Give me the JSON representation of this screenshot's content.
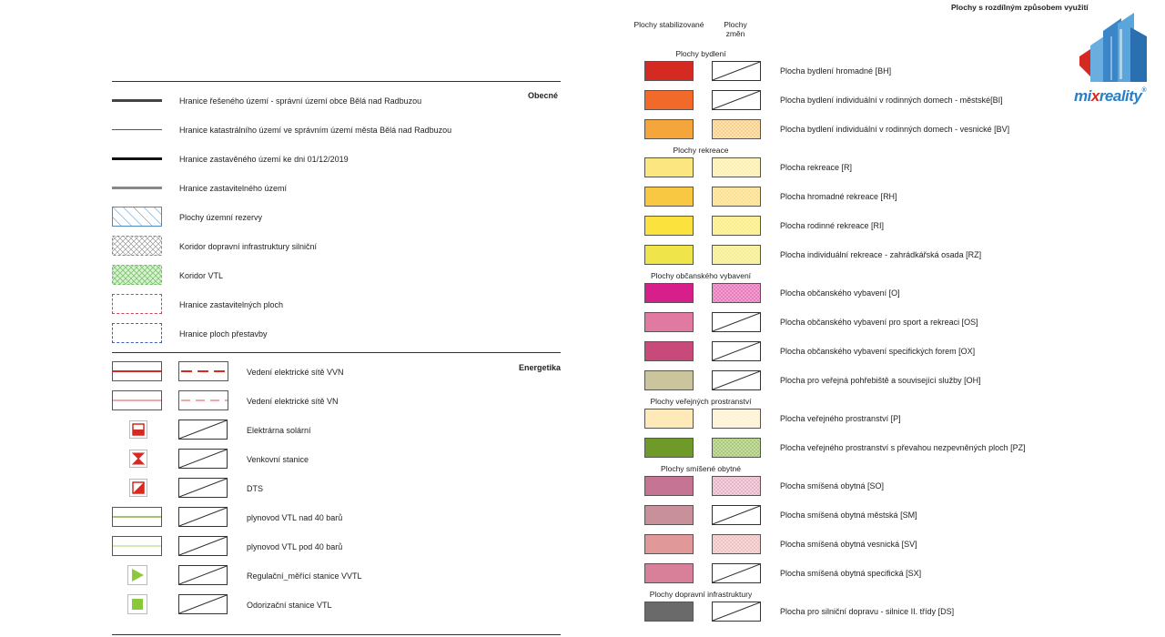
{
  "left": {
    "sections": [
      {
        "title": "Obecné"
      },
      {
        "title": "Energetika"
      }
    ],
    "obecne_items": [
      "Hranice řešeného území - správní území obce Bělá nad Radbuzou",
      "Hranice katastrálního území ve správním území města Bělá nad Radbuzou",
      "Hranice zastavěného území ke dni 01/12/2019",
      "Hranice zastavitelného území",
      "Plochy územní rezervy",
      "Koridor dopravní infrastruktury silniční",
      "Koridor VTL",
      "Hranice zastavitelných ploch",
      "Hranice ploch přestavby"
    ],
    "energetika_items": [
      "Vedení elektrické sítě VVN",
      "Vedení elektrické sítě VN",
      "Elektrárna solární",
      "Venkovní stanice",
      "DTS",
      "plynovod VTL nad 40 barů",
      "plynovod VTL pod 40 barů",
      "Regulační_měřící stanice VVTL",
      "Odorizační stanice VTL"
    ]
  },
  "right": {
    "title": "Plochy s rozdílným způsobem využití",
    "col1": "Plochy stabilizované",
    "col2": "Plochy změn",
    "categories": [
      {
        "title": "Plochy bydlení",
        "items": [
          {
            "label": "Plocha bydlení hromadné [BH]",
            "color": "#d42a22",
            "change": "cross"
          },
          {
            "label": "Plocha bydlení individuální v rodinných domech - městské[BI]",
            "color": "#f26a2a",
            "change": "cross"
          },
          {
            "label": "Plocha bydlení individuální v rodinných domech - vesnické [BV]",
            "color": "#f4a63a",
            "change": "#fbe2b0"
          }
        ]
      },
      {
        "title": "Plochy rekreace",
        "items": [
          {
            "label": "Plocha rekreace [R]",
            "color": "#fbe680",
            "change": "#fdf5c8"
          },
          {
            "label": "Plocha hromadné rekreace [RH]",
            "color": "#f9c842",
            "change": "#fdeab0"
          },
          {
            "label": "Plocha rodinné rekreace [RI]",
            "color": "#fbe23c",
            "change": "#fdf3a8"
          },
          {
            "label": "Plocha individuální rekreace - zahrádkářská osada [RZ]",
            "color": "#efe44a",
            "change": "#f9f3b0"
          }
        ]
      },
      {
        "title": "Plochy občanského vybavení",
        "items": [
          {
            "label": "Plocha občanského vybavení [O]",
            "color": "#d61f8a",
            "change": "#f0a0d0"
          },
          {
            "label": "Plocha občanského vybavení pro sport a rekreaci [OS]",
            "color": "#e07aa0",
            "change": "cross"
          },
          {
            "label": "Plocha občanského vybavení specifických forem [OX]",
            "color": "#c84a7a",
            "change": "cross"
          },
          {
            "label": "Plocha pro veřejná pohřebiště a související služby [OH]",
            "color": "#cbc59e",
            "change": "cross"
          }
        ]
      },
      {
        "title": "Plochy veřejných prostranství",
        "items": [
          {
            "label": "Plocha veřejného prostranství [P]",
            "color": "#fdeab8",
            "change": "#fef6e0"
          },
          {
            "label": "Plocha veřejného  prostranství s převahou nezpevněných ploch [PZ]",
            "color": "#6f9a2a",
            "change": "#c4dca0"
          }
        ]
      },
      {
        "title": "Plochy smíšené obytné",
        "items": [
          {
            "label": "Plocha smíšená obytná [SO]",
            "color": "#c67494",
            "change": "#f2d0dc"
          },
          {
            "label": "Plocha smíšená obytná městská [SM]",
            "color": "#c8909a",
            "change": "cross"
          },
          {
            "label": "Plocha smíšená obytná vesnická [SV]",
            "color": "#e09898",
            "change": "#f6d8d8"
          },
          {
            "label": "Plocha smíšená obytná specifická [SX]",
            "color": "#d8809a",
            "change": "cross"
          }
        ]
      },
      {
        "title": "Plochy dopravní infrastruktury",
        "items": [
          {
            "label": "Plocha pro silniční dopravu - silnice II. třídy [DS]",
            "color": "#6a6a6a",
            "change": "cross"
          }
        ]
      }
    ]
  },
  "logo": {
    "text_left": "mi",
    "text_x": "x",
    "text_right": "reality",
    "reg": "®",
    "brand_blue": "#2a7fc4",
    "brand_red": "#d42a22"
  }
}
